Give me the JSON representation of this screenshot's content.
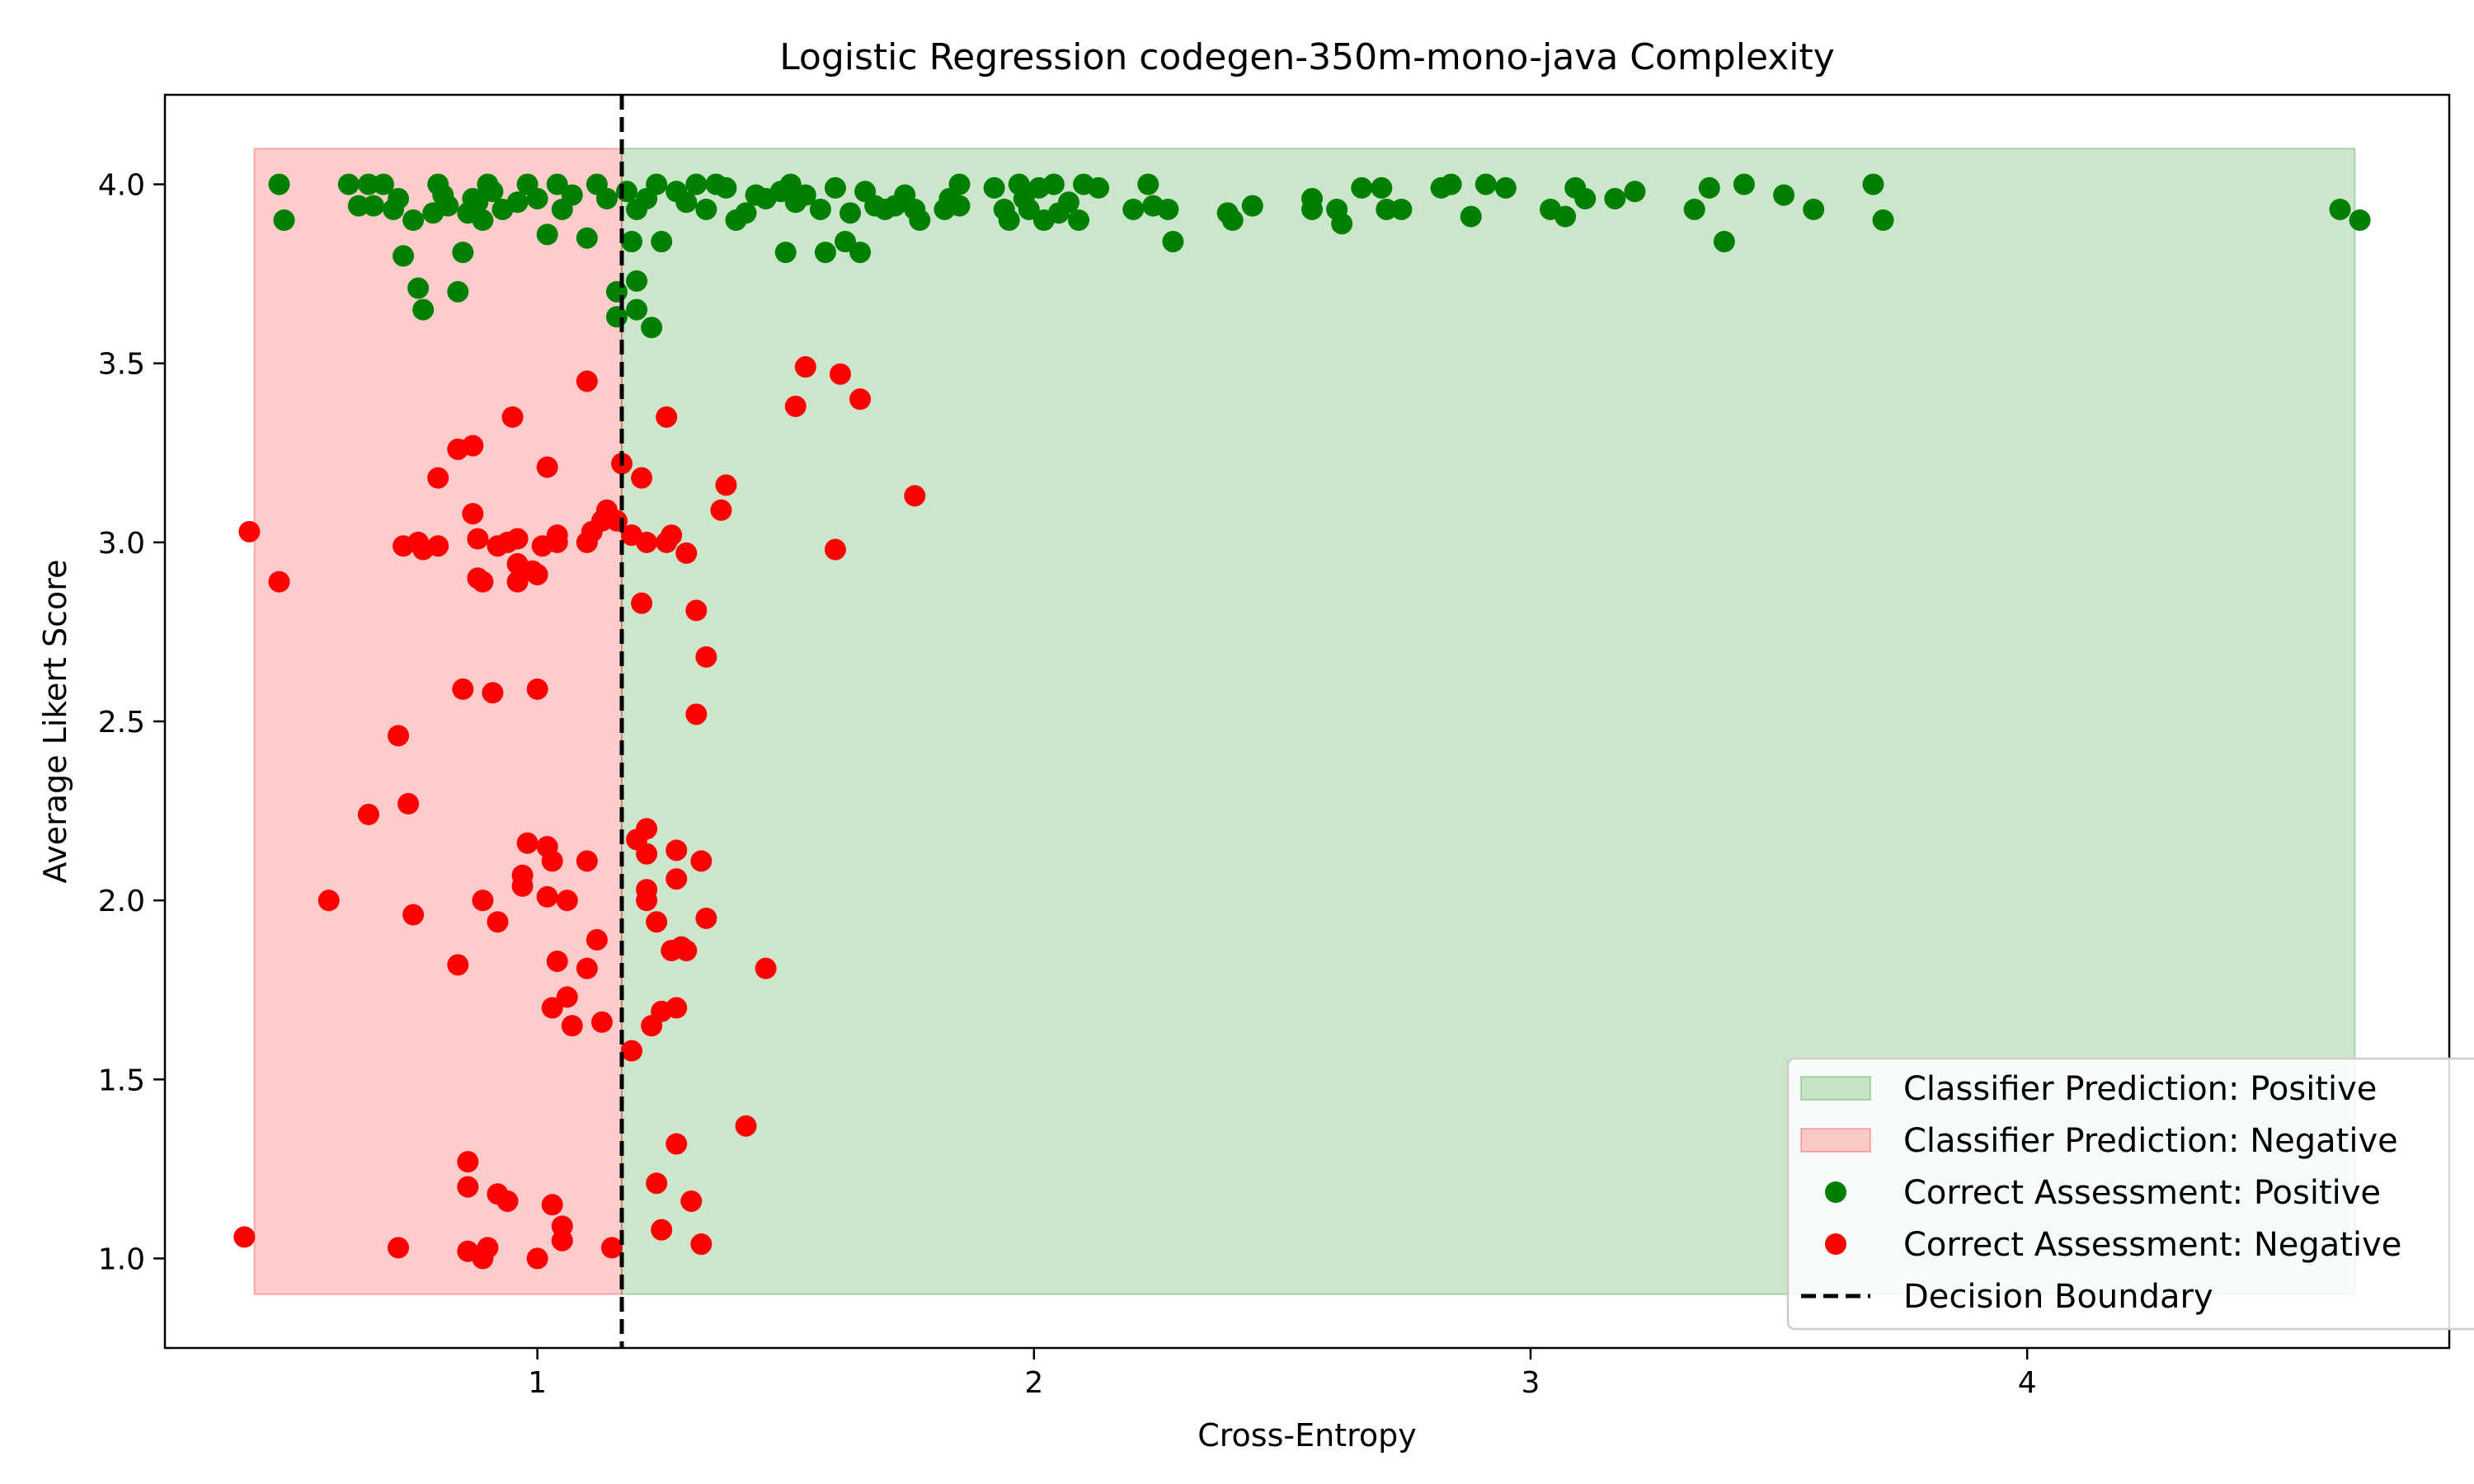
{
  "chart_data": {
    "type": "scatter",
    "title": "Logistic Regression codegen-350m-mono-java Complexity",
    "xlabel": "Cross-Entropy",
    "ylabel": "Average Likert Score",
    "xlim": [
      0.25,
      4.85
    ],
    "ylim": [
      0.75,
      4.25
    ],
    "x_ticks": [
      1,
      2,
      3,
      4
    ],
    "x_tick_labels": [
      "1",
      "2",
      "3",
      "4"
    ],
    "y_ticks": [
      1.0,
      1.5,
      2.0,
      2.5,
      3.0,
      3.5,
      4.0
    ],
    "y_tick_labels": [
      "1.0",
      "1.5",
      "2.0",
      "2.5",
      "3.0",
      "3.5",
      "4.0"
    ],
    "grid": false,
    "legend_position": "lower-right",
    "decision_boundary": 1.17,
    "regions": [
      {
        "name": "Classifier Prediction: Positive",
        "x0": 1.17,
        "x1": 4.66,
        "y0": 0.9,
        "y1": 4.1,
        "color": "#008000"
      },
      {
        "name": "Classifier Prediction: Negative",
        "x0": 0.43,
        "x1": 1.17,
        "y0": 0.9,
        "y1": 4.1,
        "color": "#ff0000"
      }
    ],
    "legend": [
      {
        "label": "Classifier Prediction: Positive",
        "kind": "patch",
        "color": "#008000"
      },
      {
        "label": "Classifier Prediction: Negative",
        "kind": "patch",
        "color": "#ff0000"
      },
      {
        "label": "Correct Assessment: Positive",
        "kind": "marker",
        "color": "#008000"
      },
      {
        "label": "Correct Assessment: Negative",
        "kind": "marker",
        "color": "#ff0000"
      },
      {
        "label": "Decision Boundary",
        "kind": "line",
        "color": "#000000"
      }
    ],
    "series": [
      {
        "name": "Correct Assessment: Positive",
        "color": "#008000",
        "points": [
          [
            0.48,
            4.0
          ],
          [
            0.49,
            3.9
          ],
          [
            0.62,
            4.0
          ],
          [
            0.64,
            3.94
          ],
          [
            0.66,
            4.0
          ],
          [
            0.67,
            3.94
          ],
          [
            0.69,
            4.0
          ],
          [
            0.71,
            3.93
          ],
          [
            0.72,
            3.96
          ],
          [
            0.73,
            3.8
          ],
          [
            0.75,
            3.9
          ],
          [
            0.76,
            3.71
          ],
          [
            0.77,
            3.65
          ],
          [
            0.79,
            3.92
          ],
          [
            0.8,
            4.0
          ],
          [
            0.81,
            3.97
          ],
          [
            0.82,
            3.94
          ],
          [
            0.84,
            3.7
          ],
          [
            0.85,
            3.81
          ],
          [
            0.86,
            3.92
          ],
          [
            0.87,
            3.96
          ],
          [
            0.88,
            3.95
          ],
          [
            0.89,
            3.9
          ],
          [
            0.9,
            4.0
          ],
          [
            0.91,
            3.98
          ],
          [
            0.93,
            3.93
          ],
          [
            0.96,
            3.95
          ],
          [
            0.98,
            4.0
          ],
          [
            1.0,
            3.96
          ],
          [
            1.02,
            3.86
          ],
          [
            1.04,
            4.0
          ],
          [
            1.05,
            3.93
          ],
          [
            1.07,
            3.97
          ],
          [
            1.1,
            3.85
          ],
          [
            1.12,
            4.0
          ],
          [
            1.14,
            3.96
          ],
          [
            1.16,
            3.7
          ],
          [
            1.16,
            3.63
          ],
          [
            1.18,
            3.98
          ],
          [
            1.19,
            3.84
          ],
          [
            1.2,
            3.93
          ],
          [
            1.2,
            3.73
          ],
          [
            1.2,
            3.65
          ],
          [
            1.22,
            3.96
          ],
          [
            1.23,
            3.6
          ],
          [
            1.24,
            4.0
          ],
          [
            1.25,
            3.84
          ],
          [
            1.28,
            3.98
          ],
          [
            1.3,
            3.95
          ],
          [
            1.32,
            4.0
          ],
          [
            1.34,
            3.93
          ],
          [
            1.36,
            4.0
          ],
          [
            1.38,
            3.99
          ],
          [
            1.4,
            3.9
          ],
          [
            1.42,
            3.92
          ],
          [
            1.44,
            3.97
          ],
          [
            1.46,
            3.96
          ],
          [
            1.49,
            3.98
          ],
          [
            1.5,
            3.81
          ],
          [
            1.51,
            4.0
          ],
          [
            1.52,
            3.95
          ],
          [
            1.54,
            3.97
          ],
          [
            1.57,
            3.93
          ],
          [
            1.58,
            3.81
          ],
          [
            1.6,
            3.99
          ],
          [
            1.62,
            3.84
          ],
          [
            1.63,
            3.92
          ],
          [
            1.65,
            3.81
          ],
          [
            1.66,
            3.98
          ],
          [
            1.68,
            3.94
          ],
          [
            1.7,
            3.93
          ],
          [
            1.72,
            3.94
          ],
          [
            1.74,
            3.97
          ],
          [
            1.76,
            3.93
          ],
          [
            1.77,
            3.9
          ],
          [
            1.82,
            3.93
          ],
          [
            1.83,
            3.96
          ],
          [
            1.85,
            4.0
          ],
          [
            1.85,
            3.94
          ],
          [
            1.92,
            3.99
          ],
          [
            1.94,
            3.93
          ],
          [
            1.95,
            3.9
          ],
          [
            1.97,
            4.0
          ],
          [
            1.98,
            3.96
          ],
          [
            1.99,
            3.93
          ],
          [
            2.01,
            3.99
          ],
          [
            2.02,
            3.9
          ],
          [
            2.04,
            4.0
          ],
          [
            2.05,
            3.92
          ],
          [
            2.07,
            3.95
          ],
          [
            2.09,
            3.9
          ],
          [
            2.1,
            4.0
          ],
          [
            2.13,
            3.99
          ],
          [
            2.2,
            3.93
          ],
          [
            2.23,
            4.0
          ],
          [
            2.24,
            3.94
          ],
          [
            2.27,
            3.93
          ],
          [
            2.28,
            3.84
          ],
          [
            2.39,
            3.92
          ],
          [
            2.4,
            3.9
          ],
          [
            2.44,
            3.94
          ],
          [
            2.56,
            3.96
          ],
          [
            2.56,
            3.93
          ],
          [
            2.61,
            3.93
          ],
          [
            2.62,
            3.89
          ],
          [
            2.66,
            3.99
          ],
          [
            2.7,
            3.99
          ],
          [
            2.71,
            3.93
          ],
          [
            2.74,
            3.93
          ],
          [
            2.82,
            3.99
          ],
          [
            2.84,
            4.0
          ],
          [
            2.88,
            3.91
          ],
          [
            2.91,
            4.0
          ],
          [
            2.95,
            3.99
          ],
          [
            3.04,
            3.93
          ],
          [
            3.07,
            3.91
          ],
          [
            3.09,
            3.99
          ],
          [
            3.11,
            3.96
          ],
          [
            3.17,
            3.96
          ],
          [
            3.21,
            3.98
          ],
          [
            3.33,
            3.93
          ],
          [
            3.36,
            3.99
          ],
          [
            3.39,
            3.84
          ],
          [
            3.43,
            4.0
          ],
          [
            3.51,
            3.97
          ],
          [
            3.57,
            3.93
          ],
          [
            3.69,
            4.0
          ],
          [
            3.71,
            3.9
          ],
          [
            4.63,
            3.93
          ],
          [
            4.67,
            3.9
          ]
        ]
      },
      {
        "name": "Correct Assessment: Negative",
        "color": "#ff0000",
        "points": [
          [
            0.41,
            1.06
          ],
          [
            0.42,
            3.03
          ],
          [
            0.48,
            2.89
          ],
          [
            0.58,
            2.0
          ],
          [
            0.66,
            2.24
          ],
          [
            0.72,
            1.03
          ],
          [
            0.72,
            2.46
          ],
          [
            0.73,
            2.99
          ],
          [
            0.74,
            2.27
          ],
          [
            0.75,
            1.96
          ],
          [
            0.76,
            3.0
          ],
          [
            0.77,
            2.98
          ],
          [
            0.8,
            2.99
          ],
          [
            0.8,
            3.18
          ],
          [
            0.84,
            3.26
          ],
          [
            0.84,
            1.82
          ],
          [
            0.85,
            2.59
          ],
          [
            0.86,
            1.27
          ],
          [
            0.86,
            1.2
          ],
          [
            0.86,
            1.02
          ],
          [
            0.87,
            3.08
          ],
          [
            0.87,
            3.27
          ],
          [
            0.88,
            3.01
          ],
          [
            0.88,
            2.9
          ],
          [
            0.89,
            2.89
          ],
          [
            0.89,
            1.0
          ],
          [
            0.89,
            2.0
          ],
          [
            0.9,
            1.03
          ],
          [
            0.91,
            2.58
          ],
          [
            0.92,
            1.18
          ],
          [
            0.92,
            2.99
          ],
          [
            0.92,
            1.94
          ],
          [
            0.94,
            3.0
          ],
          [
            0.94,
            1.16
          ],
          [
            0.95,
            3.35
          ],
          [
            0.96,
            2.94
          ],
          [
            0.96,
            2.89
          ],
          [
            0.96,
            3.01
          ],
          [
            0.97,
            2.04
          ],
          [
            0.97,
            2.07
          ],
          [
            0.98,
            2.16
          ],
          [
            0.99,
            2.92
          ],
          [
            1.0,
            2.59
          ],
          [
            1.0,
            2.91
          ],
          [
            1.0,
            1.0
          ],
          [
            1.01,
            2.99
          ],
          [
            1.02,
            2.01
          ],
          [
            1.02,
            3.21
          ],
          [
            1.02,
            2.15
          ],
          [
            1.03,
            1.15
          ],
          [
            1.03,
            2.11
          ],
          [
            1.03,
            1.7
          ],
          [
            1.04,
            3.0
          ],
          [
            1.04,
            3.02
          ],
          [
            1.04,
            1.83
          ],
          [
            1.05,
            1.09
          ],
          [
            1.05,
            1.05
          ],
          [
            1.06,
            1.73
          ],
          [
            1.06,
            2.0
          ],
          [
            1.07,
            1.65
          ],
          [
            1.1,
            3.45
          ],
          [
            1.1,
            1.81
          ],
          [
            1.1,
            2.11
          ],
          [
            1.1,
            3.0
          ],
          [
            1.11,
            3.03
          ],
          [
            1.12,
            1.89
          ],
          [
            1.13,
            1.66
          ],
          [
            1.13,
            3.06
          ],
          [
            1.14,
            3.09
          ],
          [
            1.15,
            1.03
          ],
          [
            1.16,
            3.06
          ],
          [
            1.17,
            3.22
          ],
          [
            1.19,
            3.02
          ],
          [
            1.19,
            1.58
          ],
          [
            1.2,
            2.17
          ],
          [
            1.21,
            3.18
          ],
          [
            1.21,
            2.83
          ],
          [
            1.22,
            2.2
          ],
          [
            1.22,
            2.13
          ],
          [
            1.22,
            2.0
          ],
          [
            1.22,
            2.03
          ],
          [
            1.22,
            3.0
          ],
          [
            1.23,
            1.65
          ],
          [
            1.24,
            1.94
          ],
          [
            1.24,
            1.21
          ],
          [
            1.25,
            1.08
          ],
          [
            1.25,
            1.69
          ],
          [
            1.26,
            3.0
          ],
          [
            1.26,
            3.35
          ],
          [
            1.27,
            3.02
          ],
          [
            1.27,
            1.86
          ],
          [
            1.28,
            2.14
          ],
          [
            1.28,
            1.32
          ],
          [
            1.28,
            1.7
          ],
          [
            1.28,
            2.06
          ],
          [
            1.29,
            1.87
          ],
          [
            1.3,
            2.97
          ],
          [
            1.3,
            1.86
          ],
          [
            1.31,
            1.16
          ],
          [
            1.32,
            2.81
          ],
          [
            1.32,
            2.52
          ],
          [
            1.33,
            1.04
          ],
          [
            1.33,
            2.11
          ],
          [
            1.34,
            1.95
          ],
          [
            1.34,
            2.68
          ],
          [
            1.37,
            3.09
          ],
          [
            1.38,
            3.16
          ],
          [
            1.42,
            1.37
          ],
          [
            1.46,
            1.81
          ],
          [
            1.52,
            3.38
          ],
          [
            1.54,
            3.49
          ],
          [
            1.6,
            2.98
          ],
          [
            1.61,
            3.47
          ],
          [
            1.65,
            3.4
          ],
          [
            1.76,
            3.13
          ]
        ]
      }
    ]
  }
}
